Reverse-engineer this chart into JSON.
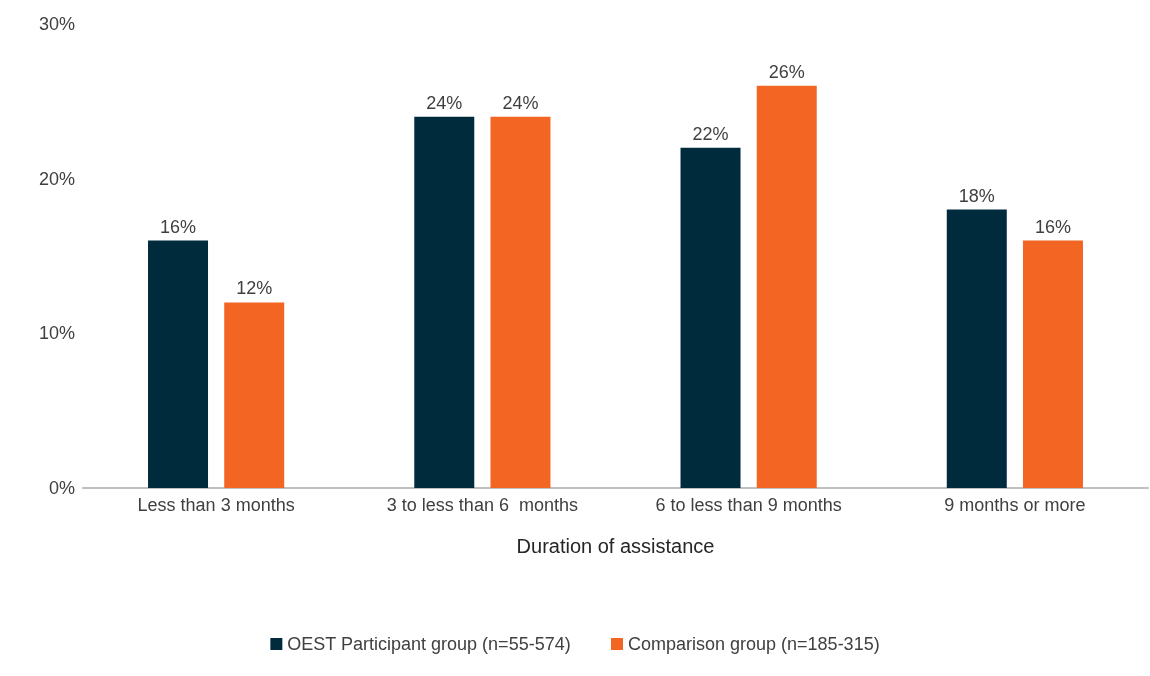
{
  "chart_data": {
    "type": "bar",
    "xlabel": "Duration of assistance",
    "categories": [
      "Less than 3 months",
      "3 to less than 6  months",
      "6 to less than 9 months",
      "9 months or more"
    ],
    "series": [
      {
        "name": "OEST Participant group (n=55-574)",
        "color": "#002b3d",
        "values": [
          16,
          24,
          22,
          18
        ],
        "value_labels": [
          "16%",
          "24%",
          "22%",
          "18%"
        ]
      },
      {
        "name": "Comparison group (n=185-315)",
        "color": "#f26522",
        "values": [
          12,
          24,
          26,
          16
        ],
        "value_labels": [
          "12%",
          "24%",
          "26%",
          "16%"
        ]
      }
    ],
    "ylim": [
      0,
      30
    ],
    "yticks": [
      {
        "value": 0,
        "label": "0%"
      },
      {
        "value": 10,
        "label": "10%"
      },
      {
        "value": 20,
        "label": "20%"
      },
      {
        "value": 30,
        "label": "30%"
      }
    ],
    "grid": false,
    "legend": "bottom"
  }
}
